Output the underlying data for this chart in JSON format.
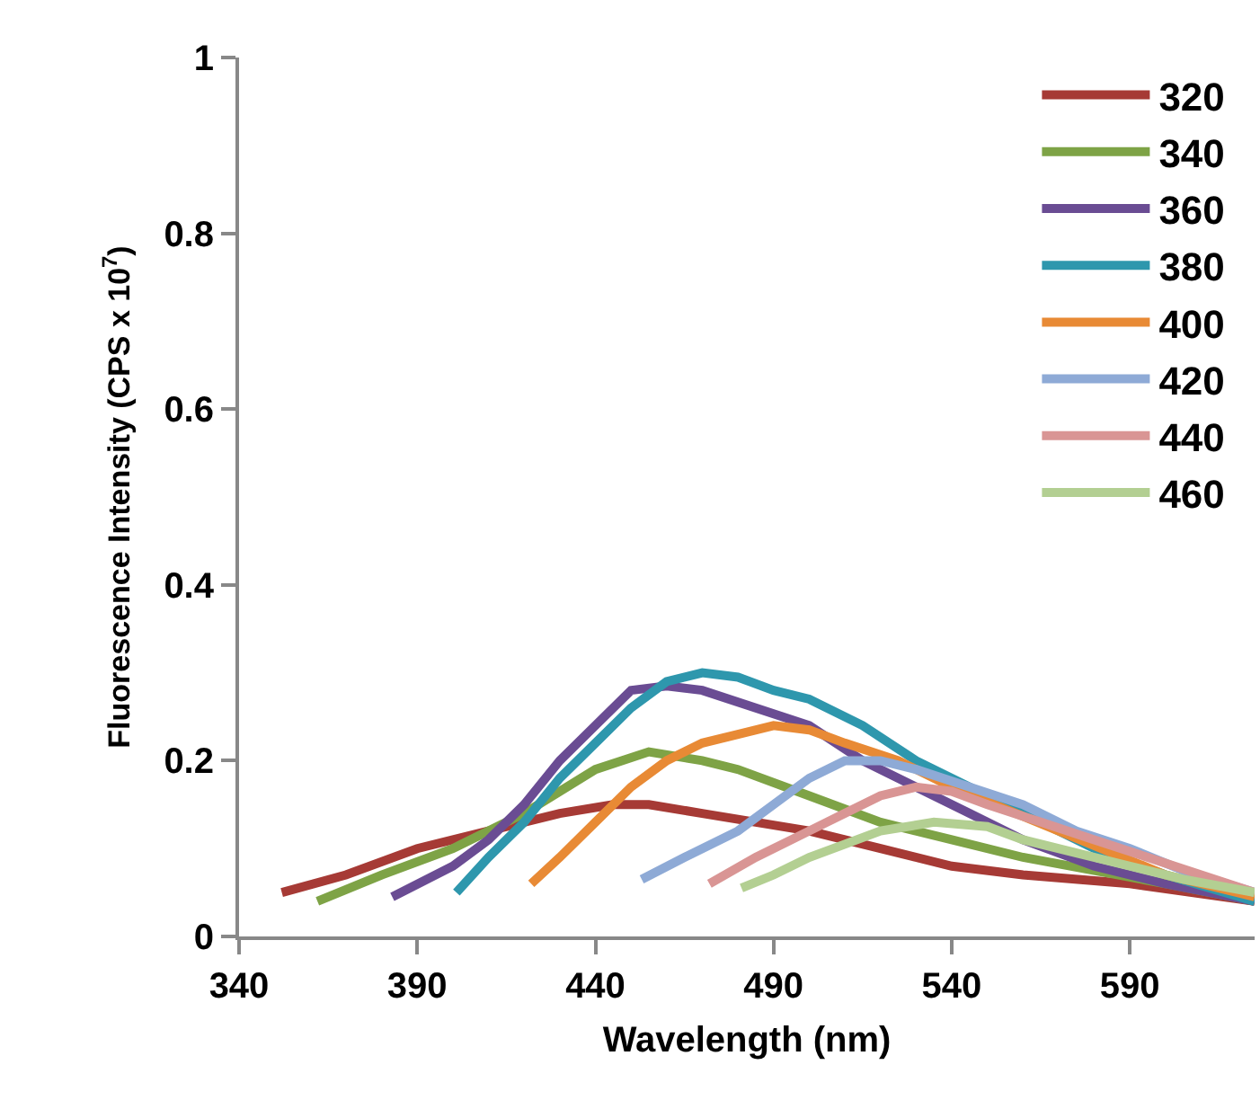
{
  "chart_data": {
    "type": "line",
    "xlabel": "Wavelength (nm)",
    "ylabel": "Fluorescence Intensity (CPS x 10$^{7}$)",
    "xlim": [
      340,
      625
    ],
    "xticks": [
      340,
      390,
      440,
      490,
      540,
      590
    ],
    "ylim": [
      0,
      1
    ],
    "yticks": [
      0,
      0.2,
      0.4,
      0.6,
      0.8,
      1
    ],
    "grid": false,
    "legend": "top right",
    "marker": "none",
    "line_style": "solid",
    "series": [
      {
        "name": "320",
        "color": "#a63a35",
        "x": [
          352,
          370,
          390,
          410,
          430,
          445,
          455,
          470,
          485,
          500,
          520,
          540,
          560,
          590,
          625
        ],
        "values": [
          0.05,
          0.07,
          0.1,
          0.12,
          0.14,
          0.15,
          0.15,
          0.14,
          0.13,
          0.12,
          0.1,
          0.08,
          0.07,
          0.06,
          0.04
        ]
      },
      {
        "name": "340",
        "color": "#7ea346",
        "x": [
          362,
          380,
          400,
          420,
          440,
          455,
          470,
          480,
          500,
          520,
          540,
          560,
          580,
          600,
          625
        ],
        "values": [
          0.04,
          0.07,
          0.1,
          0.14,
          0.19,
          0.21,
          0.2,
          0.19,
          0.16,
          0.13,
          0.11,
          0.09,
          0.075,
          0.06,
          0.04
        ]
      },
      {
        "name": "360",
        "color": "#6a4c93",
        "x": [
          383,
          400,
          410,
          420,
          430,
          440,
          450,
          460,
          470,
          485,
          500,
          515,
          530,
          545,
          560,
          580,
          600,
          625
        ],
        "values": [
          0.045,
          0.08,
          0.11,
          0.15,
          0.2,
          0.24,
          0.28,
          0.285,
          0.28,
          0.26,
          0.24,
          0.2,
          0.17,
          0.14,
          0.11,
          0.08,
          0.06,
          0.04
        ]
      },
      {
        "name": "380",
        "color": "#2e97ad",
        "x": [
          401,
          410,
          420,
          430,
          440,
          450,
          460,
          470,
          480,
          490,
          500,
          515,
          530,
          545,
          560,
          580,
          600,
          625
        ],
        "values": [
          0.05,
          0.09,
          0.13,
          0.18,
          0.22,
          0.26,
          0.29,
          0.3,
          0.295,
          0.28,
          0.27,
          0.24,
          0.2,
          0.17,
          0.14,
          0.1,
          0.07,
          0.04
        ]
      },
      {
        "name": "400",
        "color": "#e88a35",
        "x": [
          422,
          430,
          440,
          450,
          460,
          470,
          480,
          490,
          500,
          510,
          525,
          540,
          555,
          570,
          585,
          600,
          625
        ],
        "values": [
          0.06,
          0.09,
          0.13,
          0.17,
          0.2,
          0.22,
          0.23,
          0.24,
          0.235,
          0.22,
          0.2,
          0.17,
          0.145,
          0.12,
          0.095,
          0.07,
          0.045
        ]
      },
      {
        "name": "420",
        "color": "#8eaad6",
        "x": [
          453,
          465,
          480,
          490,
          500,
          510,
          520,
          530,
          545,
          560,
          575,
          590,
          605,
          625
        ],
        "values": [
          0.065,
          0.09,
          0.12,
          0.15,
          0.18,
          0.2,
          0.2,
          0.19,
          0.17,
          0.15,
          0.12,
          0.1,
          0.075,
          0.05
        ]
      },
      {
        "name": "440",
        "color": "#d99594",
        "x": [
          472,
          485,
          500,
          510,
          520,
          530,
          540,
          550,
          565,
          580,
          595,
          610,
          625
        ],
        "values": [
          0.06,
          0.09,
          0.12,
          0.14,
          0.16,
          0.17,
          0.165,
          0.15,
          0.13,
          0.11,
          0.09,
          0.07,
          0.05
        ]
      },
      {
        "name": "460",
        "color": "#b3cf92",
        "x": [
          481,
          490,
          500,
          510,
          520,
          535,
          550,
          560,
          575,
          590,
          605,
          625
        ],
        "values": [
          0.055,
          0.07,
          0.09,
          0.105,
          0.12,
          0.13,
          0.125,
          0.11,
          0.095,
          0.08,
          0.065,
          0.05
        ]
      }
    ]
  }
}
